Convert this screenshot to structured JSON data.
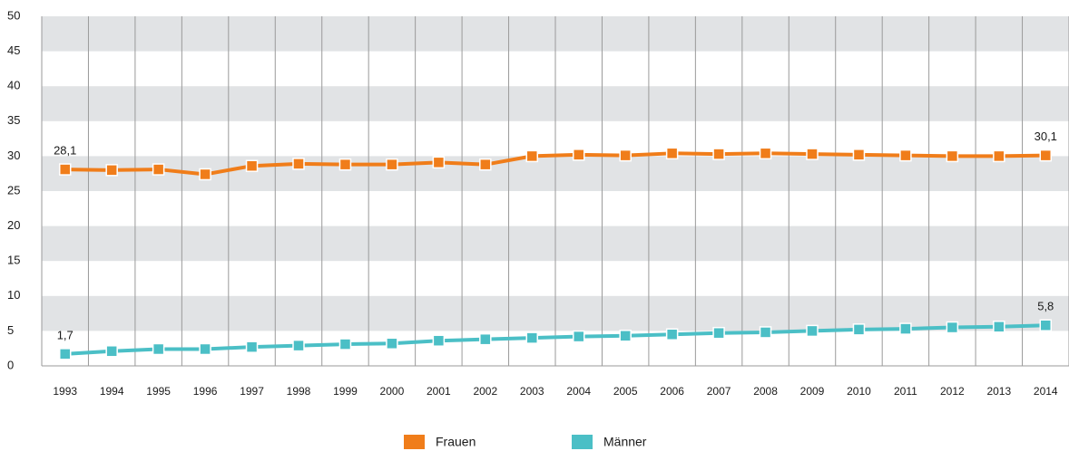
{
  "chart_data": {
    "type": "line",
    "categories": [
      "1993",
      "1994",
      "1995",
      "1996",
      "1997",
      "1998",
      "1999",
      "2000",
      "2001",
      "2002",
      "2003",
      "2004",
      "2005",
      "2006",
      "2007",
      "2008",
      "2009",
      "2010",
      "2011",
      "2012",
      "2013",
      "2014"
    ],
    "series": [
      {
        "name": "Frauen",
        "color": "#f07d1a",
        "values": [
          28.1,
          28.0,
          28.1,
          27.4,
          28.6,
          28.9,
          28.8,
          28.8,
          29.1,
          28.8,
          30.0,
          30.2,
          30.1,
          30.4,
          30.3,
          30.4,
          30.3,
          30.2,
          30.1,
          30.0,
          30.0,
          30.1
        ],
        "value_labels": [
          "28,1",
          null,
          null,
          null,
          null,
          null,
          null,
          null,
          null,
          null,
          null,
          null,
          null,
          null,
          null,
          null,
          null,
          null,
          null,
          null,
          null,
          "30,1"
        ]
      },
      {
        "name": "Männer",
        "color": "#4bbfc6",
        "values": [
          1.7,
          2.1,
          2.4,
          2.4,
          2.7,
          2.9,
          3.1,
          3.2,
          3.6,
          3.8,
          4.0,
          4.2,
          4.3,
          4.5,
          4.7,
          4.8,
          5.0,
          5.2,
          5.3,
          5.5,
          5.6,
          5.8
        ],
        "value_labels": [
          "1,7",
          null,
          null,
          null,
          null,
          null,
          null,
          null,
          null,
          null,
          null,
          null,
          null,
          null,
          null,
          null,
          null,
          null,
          null,
          null,
          null,
          "5,8"
        ]
      }
    ],
    "ylim": [
      0,
      50
    ],
    "yticks": [
      0,
      5,
      10,
      15,
      20,
      25,
      30,
      35,
      40,
      45,
      50
    ],
    "grid": true,
    "band_color": "#e1e3e5",
    "legend": "bottom"
  }
}
